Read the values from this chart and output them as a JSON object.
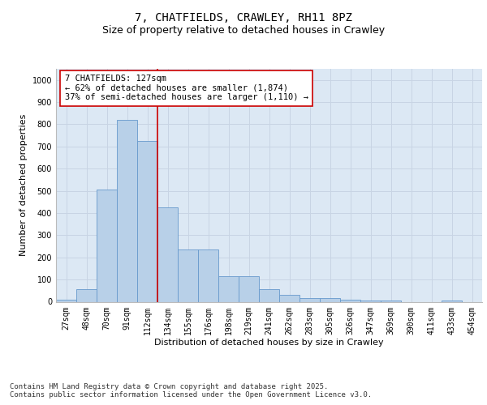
{
  "title": "7, CHATFIELDS, CRAWLEY, RH11 8PZ",
  "subtitle": "Size of property relative to detached houses in Crawley",
  "xlabel": "Distribution of detached houses by size in Crawley",
  "ylabel": "Number of detached properties",
  "categories": [
    "27sqm",
    "48sqm",
    "70sqm",
    "91sqm",
    "112sqm",
    "134sqm",
    "155sqm",
    "176sqm",
    "198sqm",
    "219sqm",
    "241sqm",
    "262sqm",
    "283sqm",
    "305sqm",
    "326sqm",
    "347sqm",
    "369sqm",
    "390sqm",
    "411sqm",
    "433sqm",
    "454sqm"
  ],
  "values": [
    10,
    55,
    505,
    820,
    725,
    425,
    235,
    235,
    115,
    115,
    55,
    30,
    15,
    15,
    10,
    5,
    5,
    0,
    0,
    5,
    0
  ],
  "bar_color": "#b8d0e8",
  "bar_edge_color": "#6699cc",
  "property_line_x": 4.5,
  "annotation_text": "7 CHATFIELDS: 127sqm\n← 62% of detached houses are smaller (1,874)\n37% of semi-detached houses are larger (1,110) →",
  "annotation_box_facecolor": "#ffffff",
  "annotation_box_edgecolor": "#cc0000",
  "line_color": "#cc0000",
  "ylim": [
    0,
    1050
  ],
  "yticks": [
    0,
    100,
    200,
    300,
    400,
    500,
    600,
    700,
    800,
    900,
    1000
  ],
  "grid_color": "#c8d4e4",
  "background_color": "#dce8f4",
  "footer": "Contains HM Land Registry data © Crown copyright and database right 2025.\nContains public sector information licensed under the Open Government Licence v3.0.",
  "title_fontsize": 10,
  "subtitle_fontsize": 9,
  "axis_label_fontsize": 8,
  "tick_fontsize": 7,
  "annotation_fontsize": 7.5,
  "footer_fontsize": 6.5
}
